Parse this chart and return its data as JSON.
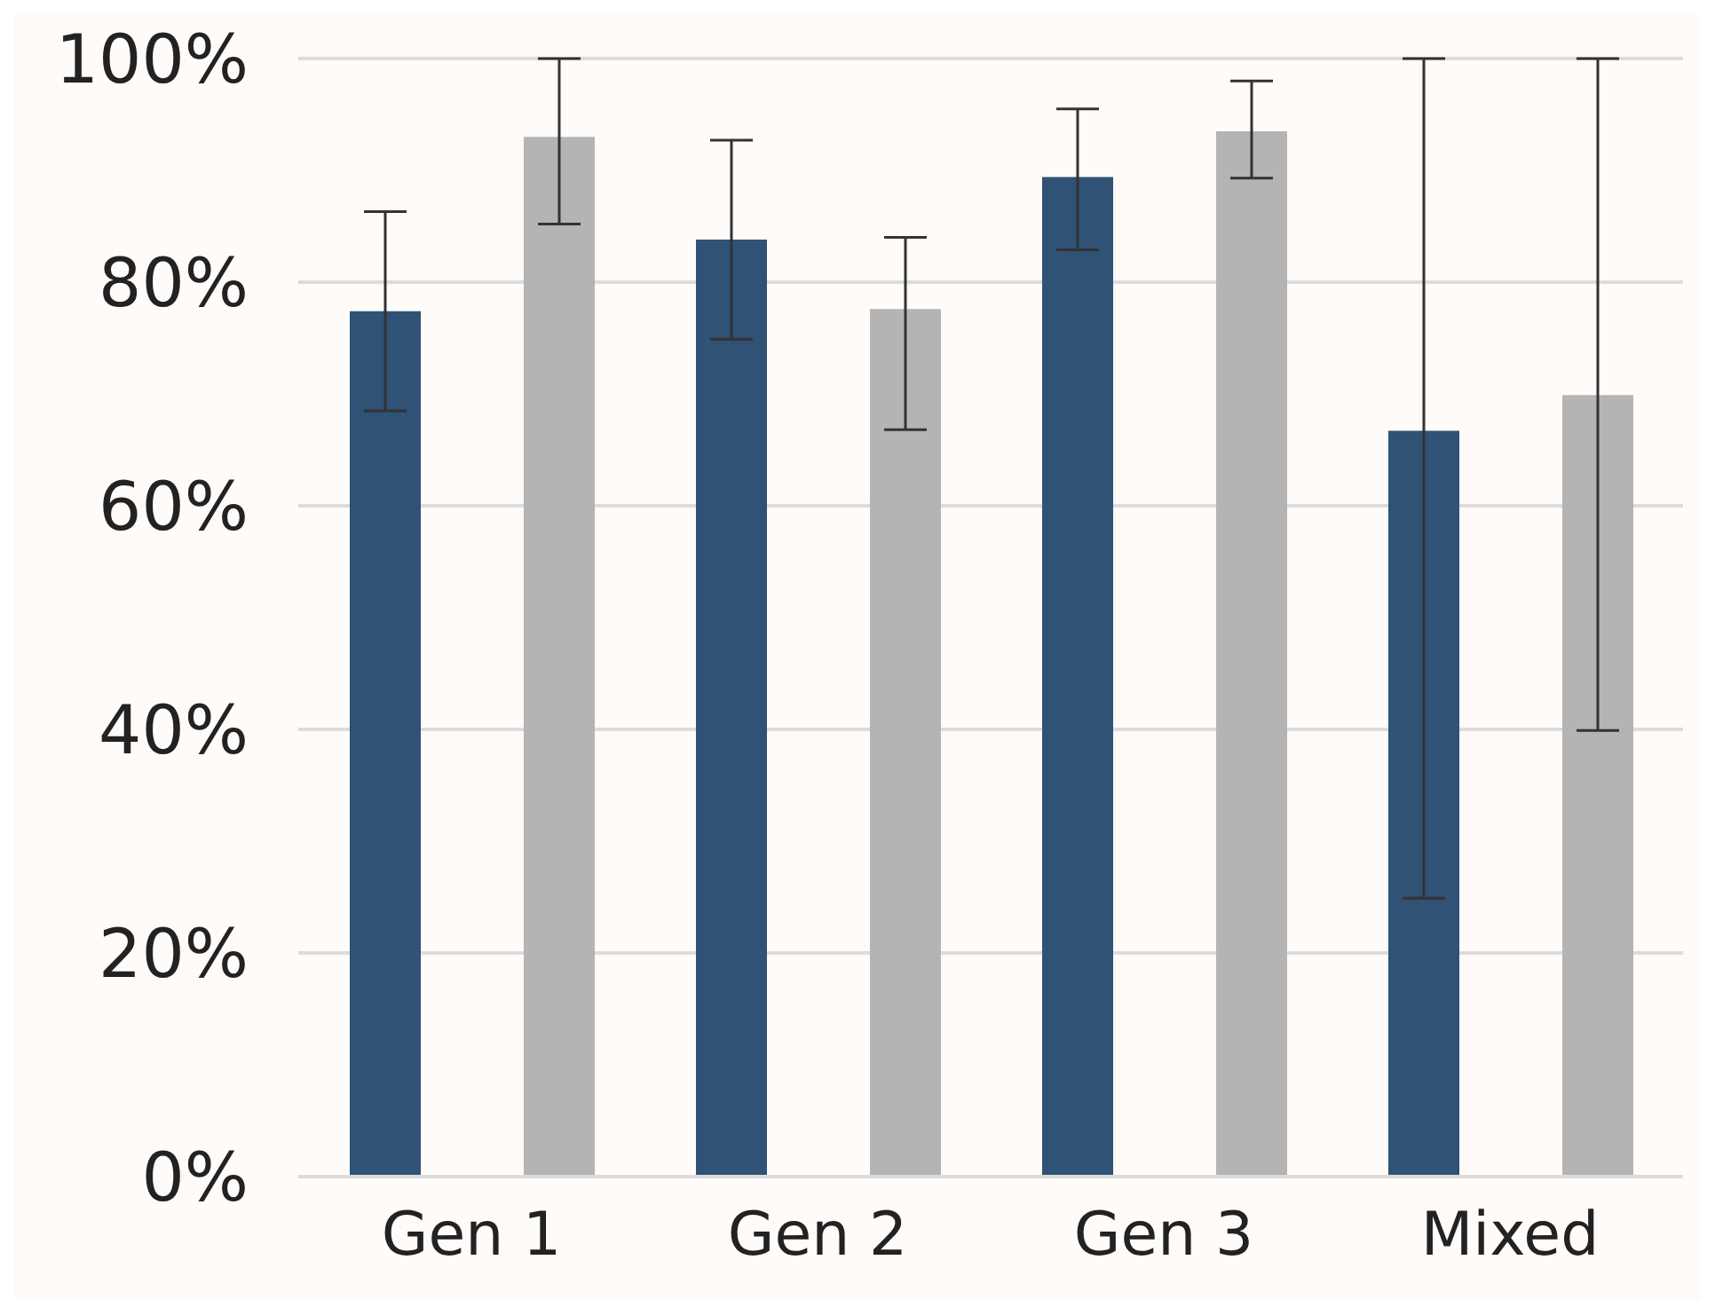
{
  "chart_data": {
    "type": "bar",
    "categories": [
      "Gen 1",
      "Gen 2",
      "Gen 3",
      "Mixed"
    ],
    "series": [
      {
        "color": "#2f5275",
        "values": [
          77.4,
          83.8,
          89.4,
          66.7
        ],
        "errors": [
          [
            68.5,
            86.3
          ],
          [
            74.9,
            92.7
          ],
          [
            82.9,
            95.5
          ],
          [
            24.9,
            100
          ]
        ]
      },
      {
        "color": "#b4b4b4",
        "values": [
          93,
          77.6,
          93.5,
          69.9
        ],
        "errors": [
          [
            85.2,
            100
          ],
          [
            66.8,
            84
          ],
          [
            89.3,
            98
          ],
          [
            39.9,
            100
          ]
        ]
      }
    ],
    "ylim": [
      0,
      100
    ],
    "yticks": [
      {
        "value": 0,
        "label": "0%"
      },
      {
        "value": 20,
        "label": "20%"
      },
      {
        "value": 40,
        "label": "40%"
      },
      {
        "value": 60,
        "label": "60%"
      },
      {
        "value": 80,
        "label": "80%"
      },
      {
        "value": 100,
        "label": "100%"
      }
    ],
    "grid": "y"
  }
}
